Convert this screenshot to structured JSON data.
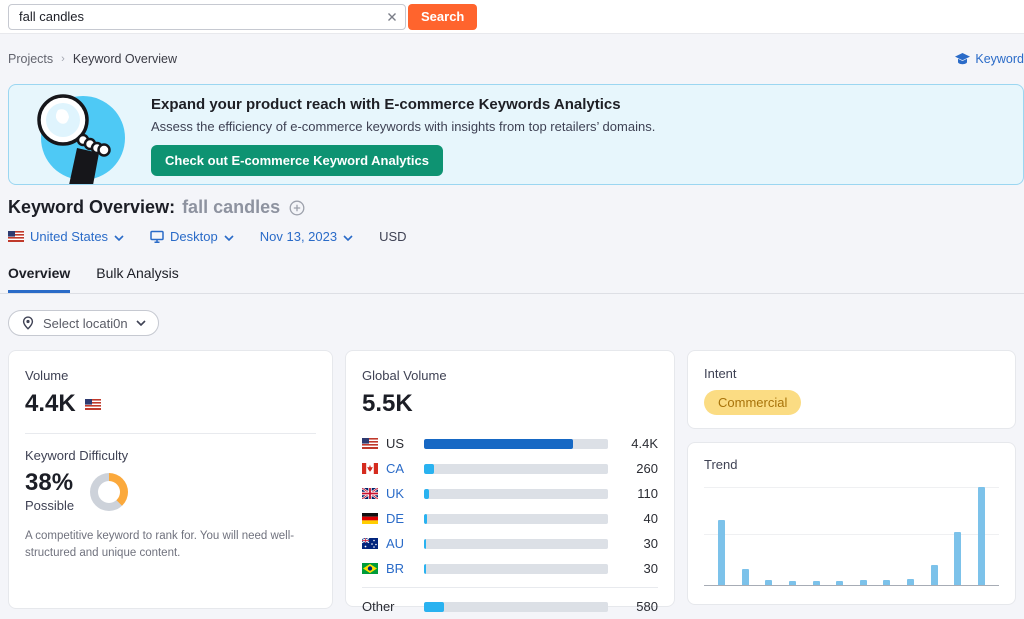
{
  "search": {
    "value": "fall candles",
    "button_label": "Search"
  },
  "breadcrumb": {
    "items": [
      "Projects",
      "Keyword Overview"
    ],
    "separator": "›"
  },
  "header_link": {
    "label": "Keyword"
  },
  "banner": {
    "title": "Expand your product reach with E-commerce Keywords Analytics",
    "subtitle": "Assess the efficiency of e-commerce keywords with insights from top retailers’ domains.",
    "cta_label": "Check out E-commerce Keyword Analytics"
  },
  "page": {
    "title": "Keyword Overview:",
    "keyword": "fall candles"
  },
  "filters": {
    "location": "United States",
    "device": "Desktop",
    "date": "Nov 13, 2023",
    "currency": "USD"
  },
  "tabs": [
    {
      "label": "Overview",
      "active": true
    },
    {
      "label": "Bulk Analysis",
      "active": false
    }
  ],
  "location_selector": {
    "label": "Select locati0n"
  },
  "volume_card": {
    "label": "Volume",
    "value": "4.4K",
    "kd_label": "Keyword Difficulty",
    "kd_value": "38%",
    "kd_percent": 38,
    "kd_rating": "Possible",
    "kd_description": "A competitive keyword to rank for. You will need well-structured and unique content."
  },
  "global_volume_card": {
    "label": "Global Volume",
    "value": "5.5K"
  },
  "intent_card": {
    "label": "Intent",
    "badge": "Commercial"
  },
  "trend_card": {
    "label": "Trend"
  },
  "colors": {
    "brand_orange": "#FF642D",
    "link_blue": "#2A6BC8",
    "bar_primary": "#1668C4",
    "bar_secondary": "#29B2F0",
    "trend_bar": "#7CC2EA",
    "kd_arc": "#FBA93C",
    "kd_track": "#CDD2DA",
    "intent_bg": "#FBDC83",
    "intent_text": "#A8730A",
    "cta_green": "#0E9372"
  },
  "chart_data": [
    {
      "type": "bar",
      "orientation": "horizontal",
      "title": "Global Volume",
      "total_label": "5.5K",
      "total_value": 5500,
      "categories": [
        "US",
        "CA",
        "UK",
        "DE",
        "AU",
        "BR",
        "Other"
      ],
      "values": [
        4400,
        260,
        110,
        40,
        30,
        30,
        580
      ],
      "value_labels": [
        "4.4K",
        "260",
        "110",
        "40",
        "30",
        "30",
        "580"
      ],
      "fill_percents": [
        81,
        5.5,
        2.5,
        1.6,
        1.3,
        1.3,
        11
      ],
      "flag_keys": [
        "us",
        "ca",
        "uk",
        "de",
        "au",
        "br",
        null
      ],
      "linked": [
        false,
        true,
        true,
        true,
        true,
        true,
        false
      ],
      "legend": "none",
      "grid": false
    },
    {
      "type": "bar",
      "title": "Trend",
      "categories": [
        "",
        "",
        "",
        "",
        "",
        "",
        "",
        "",
        "",
        "",
        "",
        ""
      ],
      "values_normalized": [
        0.66,
        0.16,
        0.05,
        0.04,
        0.04,
        0.04,
        0.05,
        0.05,
        0.06,
        0.2,
        0.54,
        1.0
      ],
      "ylim": [
        0,
        1
      ],
      "gridlines_normalized": [
        0.525,
        1.0
      ],
      "tick_labels": "none",
      "legend": "none"
    }
  ]
}
